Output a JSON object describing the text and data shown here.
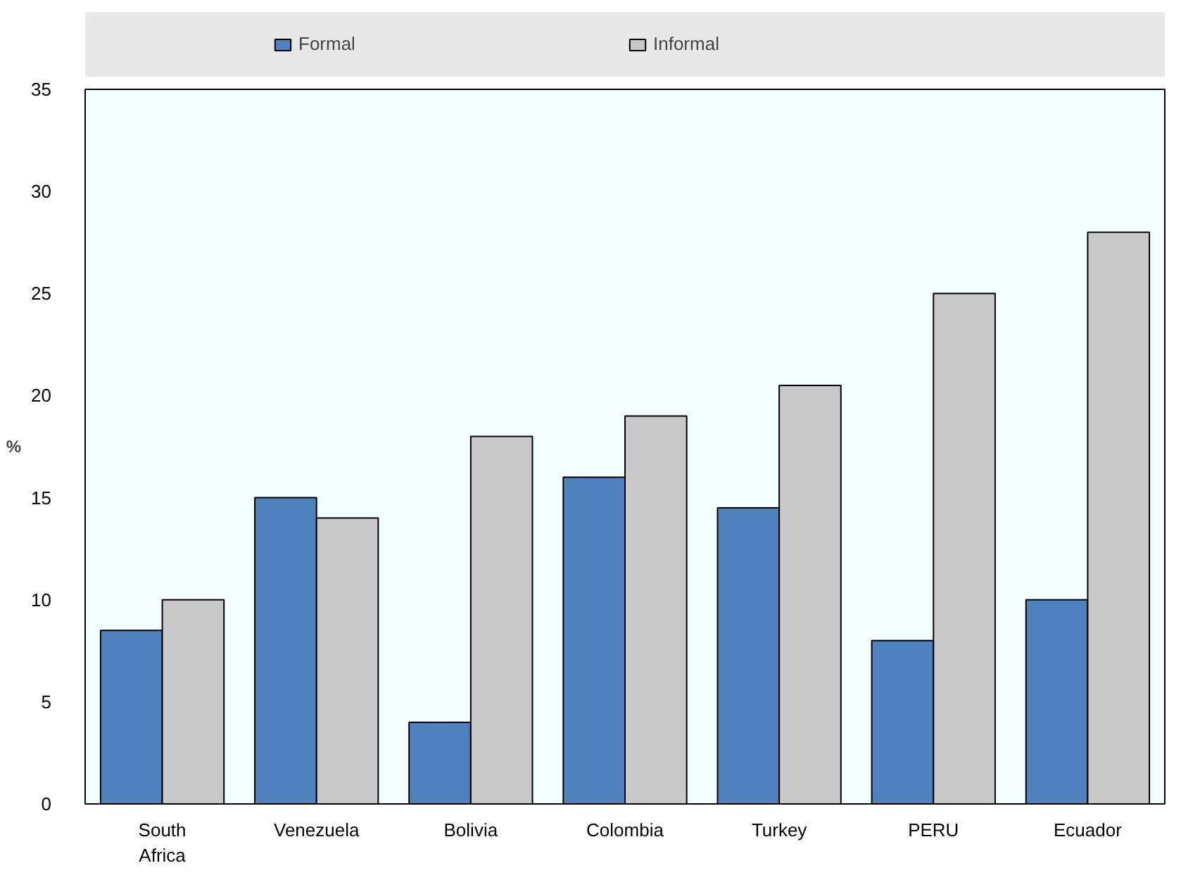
{
  "chart_data": {
    "type": "bar",
    "ylabel": "%",
    "categories": [
      "South Africa",
      "Venezuela",
      "Bolivia",
      "Colombia",
      "Turkey",
      "PERU",
      "Ecuador"
    ],
    "series": [
      {
        "name": "Formal",
        "color": "#4f81bd",
        "values": [
          8.5,
          15,
          4,
          16,
          14.5,
          8,
          10
        ]
      },
      {
        "name": "Informal",
        "color": "#c8c8c8",
        "values": [
          10,
          14,
          18,
          19,
          20.5,
          25,
          28
        ]
      }
    ],
    "ylim": [
      0,
      35
    ],
    "yticks": [
      0,
      5,
      10,
      15,
      20,
      25,
      30,
      35
    ],
    "grid": false,
    "legend": "top"
  }
}
